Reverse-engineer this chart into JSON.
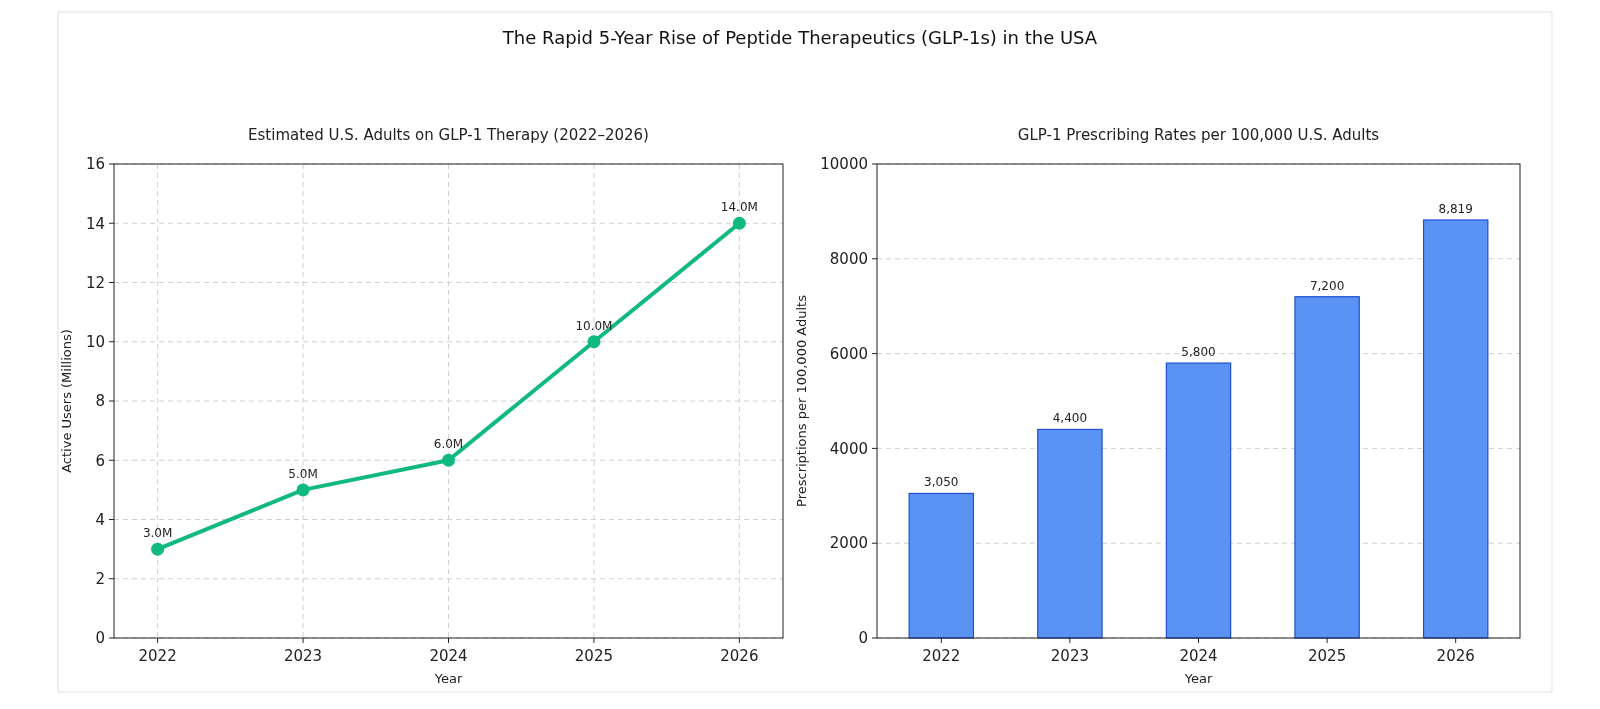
{
  "chart_data": [
    {
      "type": "line",
      "title": "The Rapid 5-Year Rise of Peptide Therapeutics (GLP-1s) in the USA",
      "subtitle": "Estimated U.S. Adults on GLP-1 Therapy (2022–2026)",
      "xlabel": "Year",
      "ylabel": "Active Users (Millions)",
      "categories": [
        "2022",
        "2023",
        "2024",
        "2025",
        "2026"
      ],
      "series": [
        {
          "color": "#10b97e",
          "values": [
            3,
            5,
            6,
            10,
            14
          ],
          "value_labels": [
            "3.0M",
            "5.0M",
            "6.0M",
            "10.0M",
            "14.0M"
          ]
        }
      ],
      "ylim": [
        0,
        16
      ],
      "yticks": [
        0,
        2,
        4,
        6,
        8,
        10,
        12,
        14,
        16
      ],
      "grid": true,
      "marker": "circle",
      "line_style": "solid"
    },
    {
      "type": "bar",
      "title": "GLP-1 Prescribing Rates per 100,000 U.S. Adults",
      "xlabel": "Year",
      "ylabel": "Prescriptions per 100,000 Adults",
      "categories": [
        "2022",
        "2023",
        "2024",
        "2025",
        "2026"
      ],
      "series": [
        {
          "color": "#5b93f5",
          "values": [
            3050,
            4400,
            5800,
            7200,
            8819
          ],
          "value_labels": [
            "3,050",
            "4,400",
            "5,800",
            "7,200",
            "8,819"
          ]
        }
      ],
      "ylim": [
        0,
        10000
      ],
      "yticks": [
        0,
        2000,
        4000,
        6000,
        8000,
        10000
      ],
      "grid": "y"
    }
  ]
}
